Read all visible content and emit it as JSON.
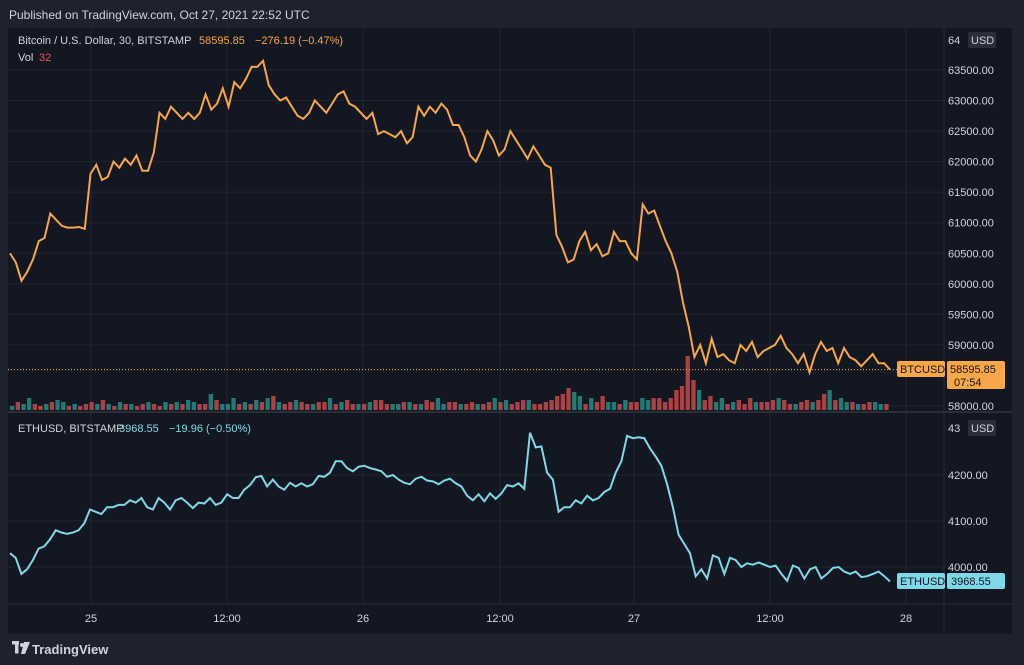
{
  "header": {
    "published": "Published on TradingView.com, Oct 27, 2021 22:52 UTC"
  },
  "footer": {
    "brand": "TradingView"
  },
  "colors": {
    "btc": "#f7a648",
    "eth": "#7fd8e8",
    "vol_up": "#26a69a",
    "vol_down": "#ef5350",
    "price_label_btc": "#f7a648",
    "price_label_eth": "#7fd8e8"
  },
  "top_pane": {
    "symbol": "Bitcoin / U.S. Dollar, 30, BITSTAMP",
    "price": "58595.85",
    "change": "−276.19 (−0.47%)",
    "vol_label": "Vol",
    "vol_value": "32",
    "currency": "USD",
    "price_tag_name": "BTCUSD",
    "price_tag_value": "58595.85",
    "countdown": "07:54",
    "axis_top_partial": "64",
    "yticks": [
      "63500.00",
      "63000.00",
      "62500.00",
      "62000.00",
      "61500.00",
      "61000.00",
      "60500.00",
      "60000.00",
      "59500.00",
      "59000.00",
      "58000.00"
    ]
  },
  "bottom_pane": {
    "symbol": "ETHUSD, BITSTAMP",
    "price": "3968.55",
    "change": "−19.96 (−0.50%)",
    "currency": "USD",
    "price_tag_name": "ETHUSD",
    "price_tag_value": "3968.55",
    "axis_top_partial": "43",
    "yticks": [
      "4200.00",
      "4100.00",
      "4000.00"
    ]
  },
  "xaxis": {
    "ticks": [
      "25",
      "12:00",
      "26",
      "12:00",
      "27",
      "12:00",
      "28"
    ]
  },
  "chart_data": [
    {
      "type": "line",
      "title": "Bitcoin / U.S. Dollar, 30, BITSTAMP",
      "ylim": [
        58000,
        64000
      ],
      "series": [
        {
          "name": "BTCUSD",
          "values": [
            60500,
            60350,
            60050,
            60200,
            60400,
            60700,
            60750,
            61150,
            61050,
            60950,
            60920,
            60920,
            60930,
            60900,
            61800,
            61950,
            61700,
            61750,
            62000,
            61900,
            62050,
            61950,
            62100,
            61850,
            61850,
            62150,
            62800,
            62700,
            62900,
            62800,
            62700,
            62800,
            62700,
            62800,
            63100,
            62850,
            62950,
            63200,
            62900,
            63300,
            63200,
            63350,
            63550,
            63550,
            63650,
            63250,
            63100,
            63000,
            63050,
            62900,
            62750,
            62700,
            62800,
            63000,
            62900,
            62800,
            62950,
            63100,
            63150,
            62950,
            62900,
            62800,
            62700,
            62800,
            62450,
            62500,
            62450,
            62400,
            62500,
            62300,
            62400,
            62900,
            62750,
            62900,
            62800,
            62950,
            62850,
            62600,
            62600,
            62400,
            62100,
            62000,
            62200,
            62500,
            62350,
            62100,
            62200,
            62500,
            62350,
            62200,
            62050,
            62250,
            62100,
            61950,
            61900,
            60800,
            60600,
            60350,
            60400,
            60700,
            60850,
            60550,
            60650,
            60450,
            60500,
            60850,
            60700,
            60700,
            60500,
            60400,
            61300,
            61150,
            61200,
            60950,
            60700,
            60500,
            60200,
            59700,
            59300,
            58800,
            59000,
            58700,
            59100,
            58800,
            58850,
            58750,
            58700,
            59000,
            58900,
            59050,
            58800,
            58900,
            58950,
            59000,
            59150,
            58950,
            58850,
            58700,
            58850,
            58550,
            58850,
            59050,
            58900,
            58950,
            58700,
            58950,
            58800,
            58750,
            58650,
            58750,
            58850,
            58700,
            58700,
            58595.85
          ]
        }
      ]
    },
    {
      "type": "bar",
      "title": "Vol",
      "series": [
        {
          "name": "Vol",
          "up": [
            1,
            0,
            1,
            1,
            0,
            0,
            1,
            0,
            1,
            1,
            0,
            1,
            0,
            0,
            0,
            1,
            0,
            1,
            0,
            1,
            0,
            1,
            0,
            0,
            1,
            0,
            0,
            1,
            0,
            1,
            0,
            1,
            1,
            0,
            0,
            1,
            0,
            1,
            1,
            1,
            0,
            1,
            0,
            1,
            0,
            1,
            0,
            1,
            0,
            0,
            1,
            0,
            0,
            1,
            0,
            0,
            1,
            0,
            1,
            0,
            0,
            1,
            0,
            1,
            0,
            0,
            0,
            1,
            1,
            0,
            1,
            0,
            1,
            0,
            0,
            1,
            1,
            0,
            0,
            1,
            0,
            0,
            1,
            0,
            0,
            1,
            0,
            1,
            0,
            0,
            0,
            1,
            0,
            0,
            0,
            0,
            0,
            0,
            0,
            1,
            1,
            0,
            1,
            0,
            0,
            1,
            1,
            0,
            1,
            0,
            0,
            1,
            1,
            0,
            0,
            0,
            0,
            0,
            0,
            0,
            0,
            1,
            0,
            0,
            1,
            1,
            0,
            1,
            0,
            0,
            0,
            1,
            0,
            0,
            0,
            1,
            0,
            0,
            1,
            0,
            0,
            1,
            0,
            0,
            1,
            0,
            1,
            1,
            0,
            1,
            0,
            0,
            1,
            1,
            0
          ],
          "values": [
            2,
            4,
            3,
            6,
            3,
            2,
            3,
            4,
            5,
            4,
            2,
            3,
            2,
            3,
            4,
            3,
            5,
            3,
            2,
            4,
            3,
            3,
            2,
            3,
            4,
            3,
            2,
            4,
            3,
            4,
            3,
            5,
            4,
            3,
            3,
            8,
            5,
            3,
            3,
            6,
            3,
            4,
            3,
            5,
            4,
            6,
            7,
            4,
            3,
            4,
            5,
            4,
            3,
            3,
            4,
            4,
            6,
            3,
            4,
            5,
            3,
            3,
            3,
            4,
            5,
            5,
            3,
            3,
            3,
            4,
            4,
            3,
            3,
            5,
            4,
            6,
            3,
            4,
            4,
            3,
            3,
            4,
            3,
            3,
            4,
            6,
            4,
            5,
            3,
            4,
            5,
            5,
            3,
            3,
            4,
            5,
            7,
            8,
            11,
            9,
            7,
            3,
            6,
            4,
            7,
            4,
            4,
            3,
            5,
            4,
            4,
            6,
            5,
            6,
            6,
            4,
            6,
            10,
            12,
            27,
            15,
            10,
            5,
            7,
            4,
            6,
            3,
            4,
            5,
            3,
            6,
            4,
            4,
            4,
            5,
            6,
            5,
            3,
            3,
            4,
            5,
            4,
            5,
            8,
            10,
            5,
            6,
            4,
            4,
            3,
            3,
            4,
            4,
            3,
            3
          ]
        }
      ]
    },
    {
      "type": "line",
      "title": "ETHUSD, BITSTAMP",
      "ylim": [
        3930,
        4300
      ],
      "series": [
        {
          "name": "ETHUSD",
          "values": [
            4030,
            4020,
            3985,
            3995,
            4015,
            4040,
            4045,
            4060,
            4080,
            4075,
            4072,
            4075,
            4080,
            4095,
            4125,
            4120,
            4115,
            4130,
            4130,
            4135,
            4135,
            4145,
            4140,
            4150,
            4130,
            4125,
            4150,
            4140,
            4125,
            4145,
            4150,
            4140,
            4128,
            4140,
            4138,
            4150,
            4135,
            4140,
            4158,
            4150,
            4150,
            4168,
            4178,
            4195,
            4198,
            4175,
            4190,
            4175,
            4168,
            4183,
            4175,
            4182,
            4175,
            4180,
            4198,
            4196,
            4205,
            4230,
            4230,
            4215,
            4208,
            4218,
            4220,
            4215,
            4212,
            4208,
            4196,
            4200,
            4190,
            4183,
            4180,
            4192,
            4196,
            4188,
            4186,
            4180,
            4188,
            4192,
            4182,
            4175,
            4155,
            4145,
            4158,
            4143,
            4160,
            4148,
            4160,
            4178,
            4175,
            4182,
            4170,
            4292,
            4260,
            4262,
            4205,
            4190,
            4120,
            4130,
            4130,
            4145,
            4138,
            4155,
            4145,
            4150,
            4163,
            4170,
            4205,
            4230,
            4285,
            4280,
            4282,
            4280,
            4258,
            4240,
            4220,
            4180,
            4130,
            4070,
            4050,
            4030,
            3980,
            3995,
            3975,
            4025,
            4020,
            3985,
            4020,
            4015,
            4000,
            4008,
            4005,
            4010,
            4005,
            4000,
            4003,
            3985,
            3970,
            4003,
            3998,
            3975,
            3995,
            4000,
            3975,
            3985,
            3998,
            4000,
            3990,
            3985,
            3990,
            3978,
            3980,
            3985,
            3990,
            3980,
            3968.55
          ]
        }
      ]
    }
  ]
}
